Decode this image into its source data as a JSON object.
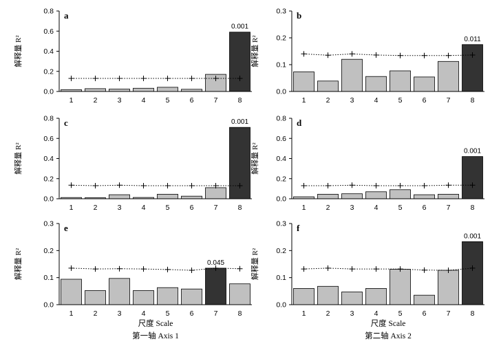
{
  "figure": {
    "ylabel": "解释量 R²",
    "xlabel": "尺度 Scale",
    "columns": [
      "第一轴 Axis 1",
      "第二轴 Axis 2"
    ]
  },
  "colors": {
    "bar": "#c0c0c0",
    "highlight": "#333333",
    "edge": "#000000"
  },
  "chart_data": [
    {
      "type": "bar",
      "panel": "a",
      "column": 0,
      "row": 0,
      "categories": [
        "1",
        "2",
        "3",
        "4",
        "5",
        "6",
        "7",
        "8"
      ],
      "values": [
        0.018,
        0.028,
        0.024,
        0.032,
        0.042,
        0.022,
        0.17,
        0.59
      ],
      "threshold": [
        0.13,
        0.13,
        0.13,
        0.13,
        0.13,
        0.13,
        0.13,
        0.13
      ],
      "highlight": [
        7
      ],
      "annotations": [
        {
          "index": 7,
          "text": "0.001"
        }
      ],
      "ylim": [
        0,
        0.8
      ],
      "yticks": [
        "0.0",
        "0.2",
        "0.4",
        "0.6",
        "0.8"
      ]
    },
    {
      "type": "bar",
      "panel": "b",
      "column": 1,
      "row": 0,
      "categories": [
        "1",
        "2",
        "3",
        "4",
        "5",
        "6",
        "7",
        "8"
      ],
      "values": [
        0.073,
        0.039,
        0.12,
        0.056,
        0.077,
        0.054,
        0.112,
        0.175
      ],
      "threshold": [
        0.14,
        0.135,
        0.14,
        0.136,
        0.134,
        0.134,
        0.134,
        0.136
      ],
      "highlight": [
        7
      ],
      "annotations": [
        {
          "index": 7,
          "text": "0.011"
        }
      ],
      "ylim": [
        0,
        0.3
      ],
      "yticks": [
        "0.0",
        "0.1",
        "0.2",
        "0.3"
      ]
    },
    {
      "type": "bar",
      "panel": "c",
      "column": 0,
      "row": 1,
      "categories": [
        "1",
        "2",
        "3",
        "4",
        "5",
        "6",
        "7",
        "8"
      ],
      "values": [
        0.012,
        0.01,
        0.04,
        0.013,
        0.045,
        0.026,
        0.11,
        0.71
      ],
      "threshold": [
        0.135,
        0.13,
        0.135,
        0.13,
        0.13,
        0.13,
        0.13,
        0.13
      ],
      "highlight": [
        7
      ],
      "annotations": [
        {
          "index": 7,
          "text": "0.001"
        }
      ],
      "ylim": [
        0,
        0.8
      ],
      "yticks": [
        "0.0",
        "0.2",
        "0.4",
        "0.6",
        "0.8"
      ]
    },
    {
      "type": "bar",
      "panel": "d",
      "column": 1,
      "row": 1,
      "categories": [
        "1",
        "2",
        "3",
        "4",
        "5",
        "6",
        "7",
        "8"
      ],
      "values": [
        0.02,
        0.045,
        0.05,
        0.07,
        0.09,
        0.04,
        0.045,
        0.42
      ],
      "threshold": [
        0.13,
        0.13,
        0.135,
        0.13,
        0.13,
        0.13,
        0.135,
        0.135
      ],
      "highlight": [
        7
      ],
      "annotations": [
        {
          "index": 7,
          "text": "0.001"
        }
      ],
      "ylim": [
        0,
        0.8
      ],
      "yticks": [
        "0.0",
        "0.2",
        "0.4",
        "0.6",
        "0.8"
      ]
    },
    {
      "type": "bar",
      "panel": "e",
      "column": 0,
      "row": 2,
      "categories": [
        "1",
        "2",
        "3",
        "4",
        "5",
        "6",
        "7",
        "8"
      ],
      "values": [
        0.094,
        0.052,
        0.097,
        0.052,
        0.063,
        0.058,
        0.135,
        0.077
      ],
      "threshold": [
        0.135,
        0.132,
        0.133,
        0.132,
        0.13,
        0.127,
        0.135,
        0.133
      ],
      "highlight": [
        6
      ],
      "annotations": [
        {
          "index": 6,
          "text": "0.045"
        }
      ],
      "ylim": [
        0,
        0.3
      ],
      "yticks": [
        "0.0",
        "0.1",
        "0.2",
        "0.3"
      ]
    },
    {
      "type": "bar",
      "panel": "f",
      "column": 1,
      "row": 2,
      "categories": [
        "1",
        "2",
        "3",
        "4",
        "5",
        "6",
        "7",
        "8"
      ],
      "values": [
        0.06,
        0.068,
        0.047,
        0.06,
        0.131,
        0.035,
        0.127,
        0.233
      ],
      "threshold": [
        0.132,
        0.135,
        0.132,
        0.132,
        0.132,
        0.128,
        0.127,
        0.135
      ],
      "highlight": [
        7
      ],
      "annotations": [
        {
          "index": 7,
          "text": "0.001"
        }
      ],
      "ylim": [
        0,
        0.3
      ],
      "yticks": [
        "0.0",
        "0.1",
        "0.2",
        "0.3"
      ]
    }
  ]
}
